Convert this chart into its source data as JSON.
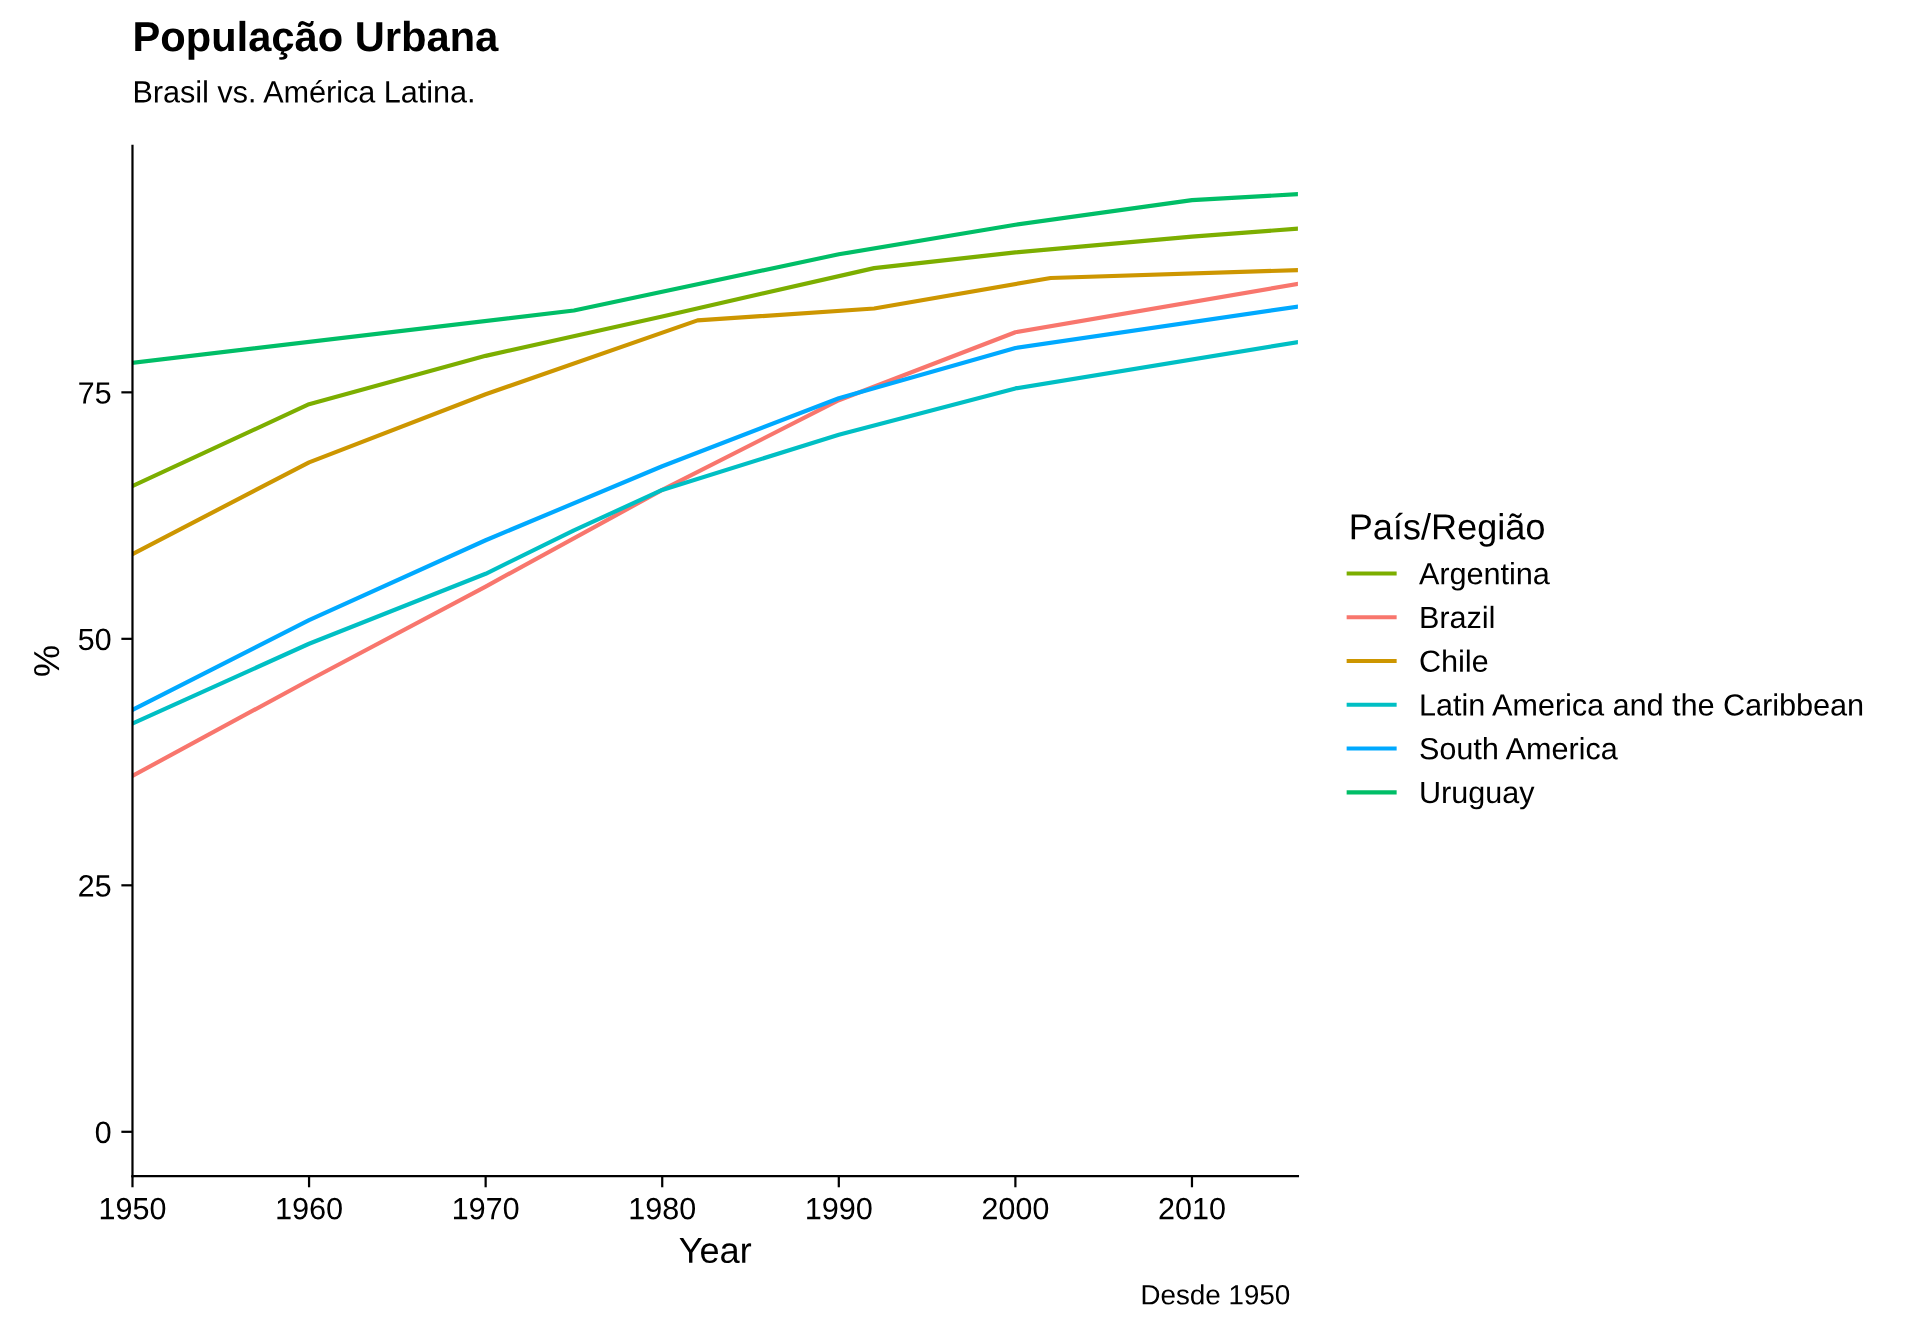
{
  "chart_data": {
    "type": "line",
    "title": "População Urbana",
    "subtitle": "Brasil vs. América Latina.",
    "xlabel": "Year",
    "ylabel": "%",
    "legend_title": "País/Região",
    "annotations": [
      "Desde 1950"
    ],
    "xlim": [
      1950,
      2016
    ],
    "xticks": [
      1950,
      1960,
      1970,
      1980,
      1990,
      2000,
      2010
    ],
    "ylim": [
      -4.5,
      100
    ],
    "yticks": [
      0,
      25,
      50,
      75
    ],
    "grid": false,
    "legend": "right",
    "line_style": "solid",
    "marker": "none",
    "series": [
      {
        "name": "Argentina",
        "color": "#7cae00",
        "x": [
          1950,
          1960,
          1970,
          1980,
          1992,
          2000,
          2010,
          2016
        ],
        "values": [
          65.5,
          73.8,
          78.7,
          82.7,
          87.6,
          89.2,
          90.8,
          91.6
        ]
      },
      {
        "name": "Brazil",
        "color": "#f8766d",
        "x": [
          1950,
          1960,
          1970,
          1980,
          1990,
          2000,
          2016
        ],
        "values": [
          36.1,
          45.8,
          55.3,
          65.1,
          74.2,
          81.1,
          86.0
        ]
      },
      {
        "name": "Chile",
        "color": "#cd9600",
        "x": [
          1950,
          1960,
          1970,
          1982,
          1992,
          2002,
          2016
        ],
        "values": [
          58.6,
          67.9,
          74.8,
          82.3,
          83.5,
          86.6,
          87.4
        ]
      },
      {
        "name": "Latin America and the Caribbean",
        "color": "#00bfc4",
        "x": [
          1950,
          1960,
          1970,
          1975,
          1980,
          1990,
          2000,
          2016
        ],
        "values": [
          41.4,
          49.5,
          56.6,
          61.0,
          65.1,
          70.7,
          75.4,
          80.1
        ]
      },
      {
        "name": "South America",
        "color": "#00a9ff",
        "x": [
          1950,
          1960,
          1970,
          1980,
          1990,
          2000,
          2016
        ],
        "values": [
          42.8,
          51.9,
          60.0,
          67.5,
          74.4,
          79.5,
          83.7
        ]
      },
      {
        "name": "Uruguay",
        "color": "#00be67",
        "x": [
          1950,
          1975,
          1990,
          2000,
          2010,
          2016
        ],
        "values": [
          78.0,
          83.3,
          89.0,
          92.0,
          94.5,
          95.1
        ]
      }
    ]
  }
}
